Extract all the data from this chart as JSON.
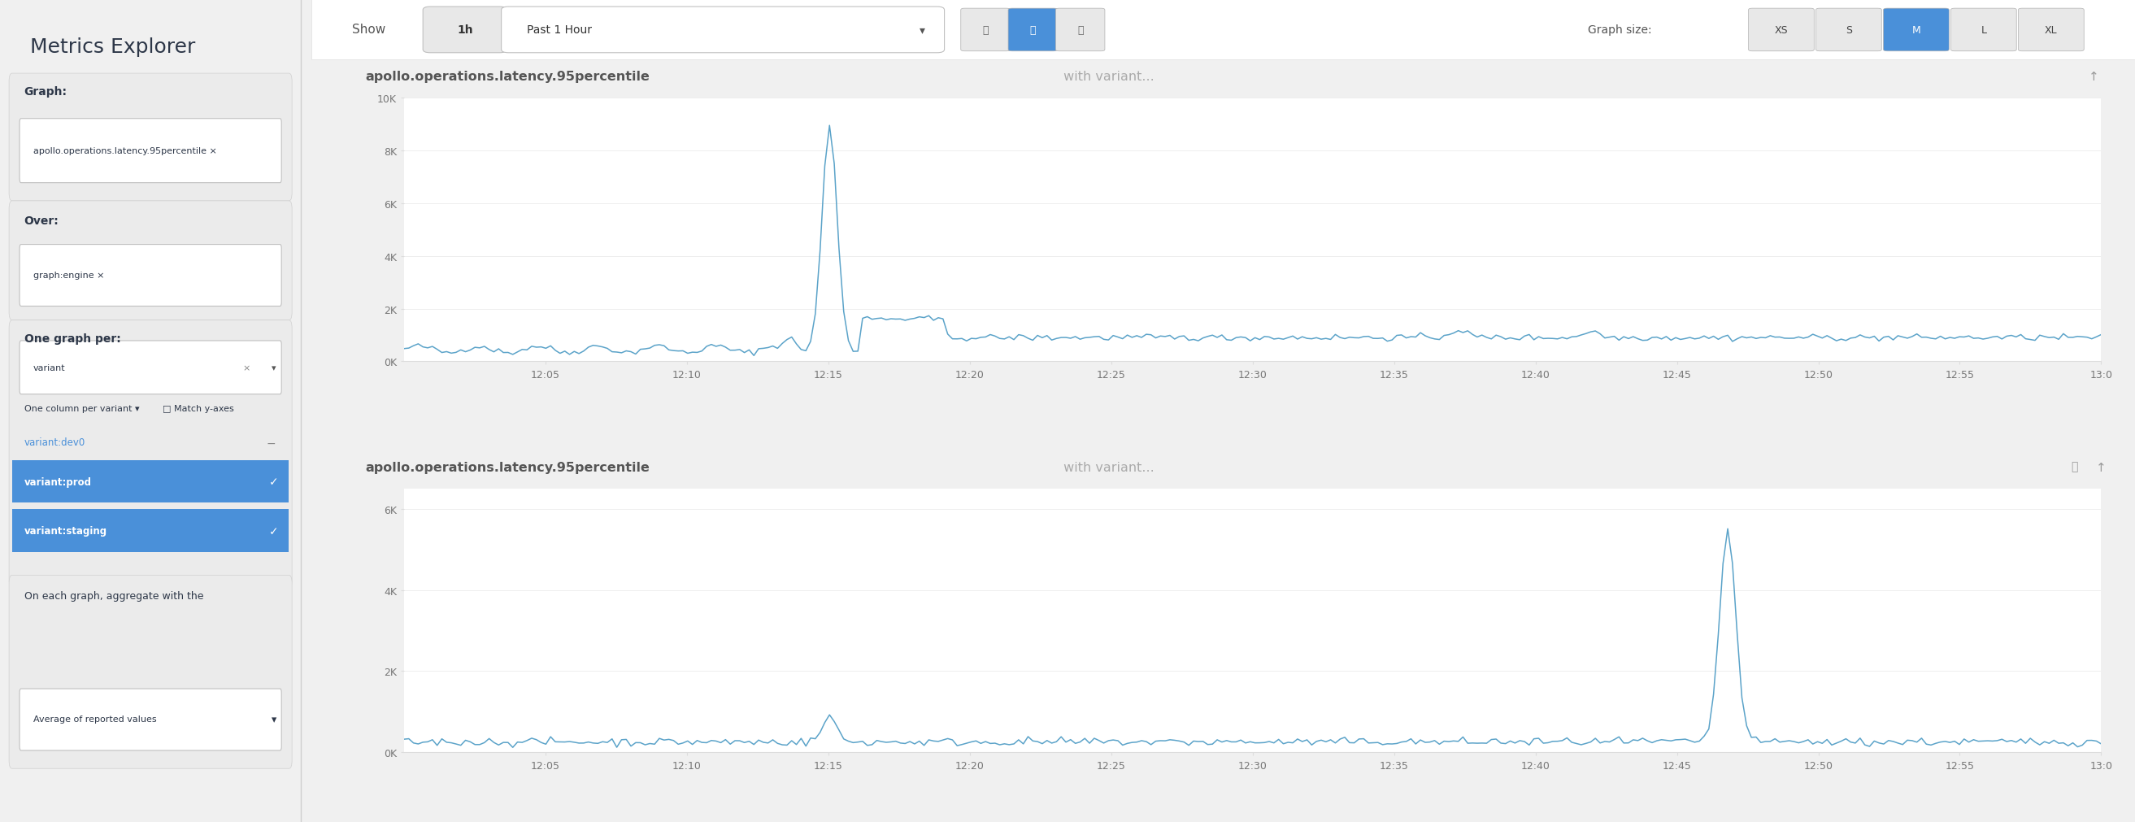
{
  "title": "Metrics Explorer",
  "left_panel_bg": "#f5f5f5",
  "graph_label": "Graph:",
  "graph_value": "apollo.operations.latency.95percentile ×",
  "over_label": "Over:",
  "over_value": "graph:engine ×",
  "one_graph_per_label": "One graph per:",
  "one_graph_per_value": "variant",
  "one_column_label": "One column per variant ▾",
  "match_y_label": "□ Match y-axes",
  "variants": [
    "variant:dev0",
    "variant:prod",
    "variant:staging"
  ],
  "aggregate_label": "On each graph, aggregate with the",
  "aggregate_value": "Average of reported values",
  "show_label": "Show",
  "time_btn": "1h",
  "time_range": "Past 1 Hour",
  "graph_size_label": "Graph size:",
  "graph_sizes": [
    "XS",
    "S",
    "M",
    "L",
    "XL"
  ],
  "graph_size_selected": "M",
  "chart1_title_bold": "apollo.operations.latency.95percentile",
  "chart1_title_rest": " with variant...",
  "chart1_yticks": [
    "0K",
    "2K",
    "4K",
    "6K",
    "8K",
    "10K"
  ],
  "chart1_ylim": [
    0,
    10000
  ],
  "chart2_title_bold": "apollo.operations.latency.95percentile",
  "chart2_title_rest": " with variant...",
  "chart2_yticks": [
    "0K",
    "2K",
    "4K",
    "6K"
  ],
  "chart2_ylim": [
    0,
    6500
  ],
  "xtick_labels": [
    "12:05",
    "12:10",
    "12:15",
    "12:20",
    "12:25",
    "12:30",
    "12:35",
    "12:40",
    "12:45",
    "12:50",
    "12:55",
    "13:0"
  ],
  "line_color": "#5ba3c9",
  "background_color": "#ffffff",
  "panel_border_color": "#e0e0e0"
}
